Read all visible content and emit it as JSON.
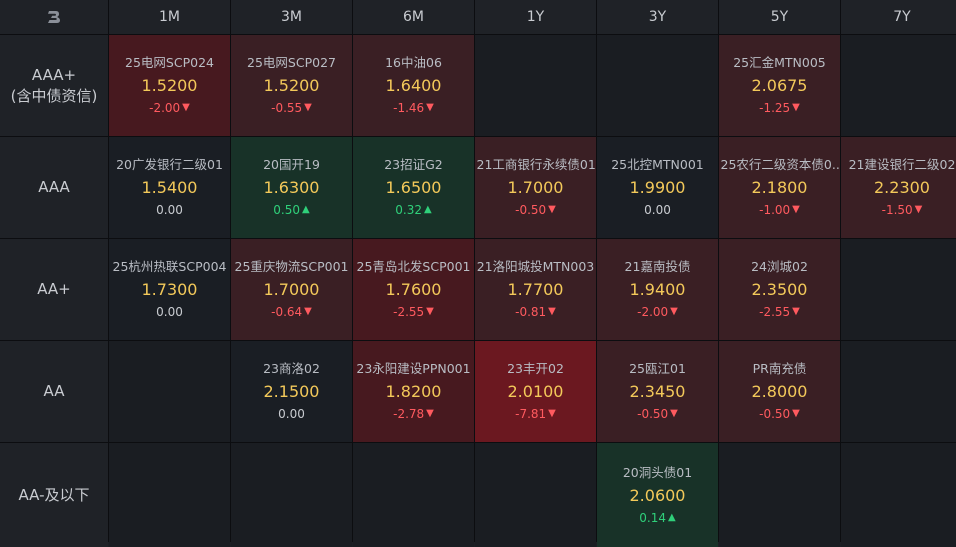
{
  "colors": {
    "accent_yellow": "#f3c95a",
    "down_red": "#ff5a5f",
    "up_green": "#2fd07a"
  },
  "header": {
    "logo_icon": "brand-logo-icon",
    "tenors": [
      "1M",
      "3M",
      "6M",
      "1Y",
      "3Y",
      "5Y",
      "7Y"
    ]
  },
  "rows": [
    {
      "label_lines": [
        "AAA+",
        "(含中债资信)"
      ],
      "cells": [
        {
          "name": "25电网SCP024",
          "rate": "1.5200",
          "change": "-2.00",
          "dir": "down",
          "tone": "red-mid"
        },
        {
          "name": "25电网SCP027",
          "rate": "1.5200",
          "change": "-0.55",
          "dir": "down",
          "tone": "red"
        },
        {
          "name": "16中油06",
          "rate": "1.6400",
          "change": "-1.46",
          "dir": "down",
          "tone": "red"
        },
        null,
        null,
        {
          "name": "25汇金MTN005",
          "rate": "2.0675",
          "change": "-1.25",
          "dir": "down",
          "tone": "red"
        },
        null
      ]
    },
    {
      "label_lines": [
        "AAA"
      ],
      "cells": [
        {
          "name": "20广发银行二级01",
          "rate": "1.5400",
          "change": "0.00",
          "dir": "flat",
          "tone": "neutral"
        },
        {
          "name": "20国开19",
          "rate": "1.6300",
          "change": "0.50",
          "dir": "up",
          "tone": "green"
        },
        {
          "name": "23招证G2",
          "rate": "1.6500",
          "change": "0.32",
          "dir": "up",
          "tone": "green"
        },
        {
          "name": "21工商银行永续债01",
          "rate": "1.7000",
          "change": "-0.50",
          "dir": "down",
          "tone": "red"
        },
        {
          "name": "25北控MTN001",
          "rate": "1.9900",
          "change": "0.00",
          "dir": "flat",
          "tone": "neutral"
        },
        {
          "name": "25农行二级资本债0...",
          "rate": "2.1800",
          "change": "-1.00",
          "dir": "down",
          "tone": "red"
        },
        {
          "name": "21建设银行二级02",
          "rate": "2.2300",
          "change": "-1.50",
          "dir": "down",
          "tone": "red"
        }
      ]
    },
    {
      "label_lines": [
        "AA+"
      ],
      "cells": [
        {
          "name": "25杭州热联SCP004",
          "rate": "1.7300",
          "change": "0.00",
          "dir": "flat",
          "tone": "neutral"
        },
        {
          "name": "25重庆物流SCP001",
          "rate": "1.7000",
          "change": "-0.64",
          "dir": "down",
          "tone": "red"
        },
        {
          "name": "25青岛北发SCP001",
          "rate": "1.7600",
          "change": "-2.55",
          "dir": "down",
          "tone": "red-mid"
        },
        {
          "name": "21洛阳城投MTN003",
          "rate": "1.7700",
          "change": "-0.81",
          "dir": "down",
          "tone": "red"
        },
        {
          "name": "21嘉南投债",
          "rate": "1.9400",
          "change": "-2.00",
          "dir": "down",
          "tone": "red"
        },
        {
          "name": "24浏城02",
          "rate": "2.3500",
          "change": "-2.55",
          "dir": "down",
          "tone": "red"
        },
        null
      ]
    },
    {
      "label_lines": [
        "AA"
      ],
      "cells": [
        null,
        {
          "name": "23商洛02",
          "rate": "2.1500",
          "change": "0.00",
          "dir": "flat",
          "tone": "neutral"
        },
        {
          "name": "23永阳建设PPN001",
          "rate": "1.8200",
          "change": "-2.78",
          "dir": "down",
          "tone": "red-mid"
        },
        {
          "name": "23丰开02",
          "rate": "2.0100",
          "change": "-7.81",
          "dir": "down",
          "tone": "red-strong"
        },
        {
          "name": "25瓯江01",
          "rate": "2.3450",
          "change": "-0.50",
          "dir": "down",
          "tone": "red"
        },
        {
          "name": "PR南充债",
          "rate": "2.8000",
          "change": "-0.50",
          "dir": "down",
          "tone": "red"
        },
        null
      ]
    },
    {
      "label_lines": [
        "AA-及以下"
      ],
      "cells": [
        null,
        null,
        null,
        null,
        {
          "name": "20洞头债01",
          "rate": "2.0600",
          "change": "0.14",
          "dir": "up",
          "tone": "green"
        },
        null,
        null
      ]
    }
  ]
}
